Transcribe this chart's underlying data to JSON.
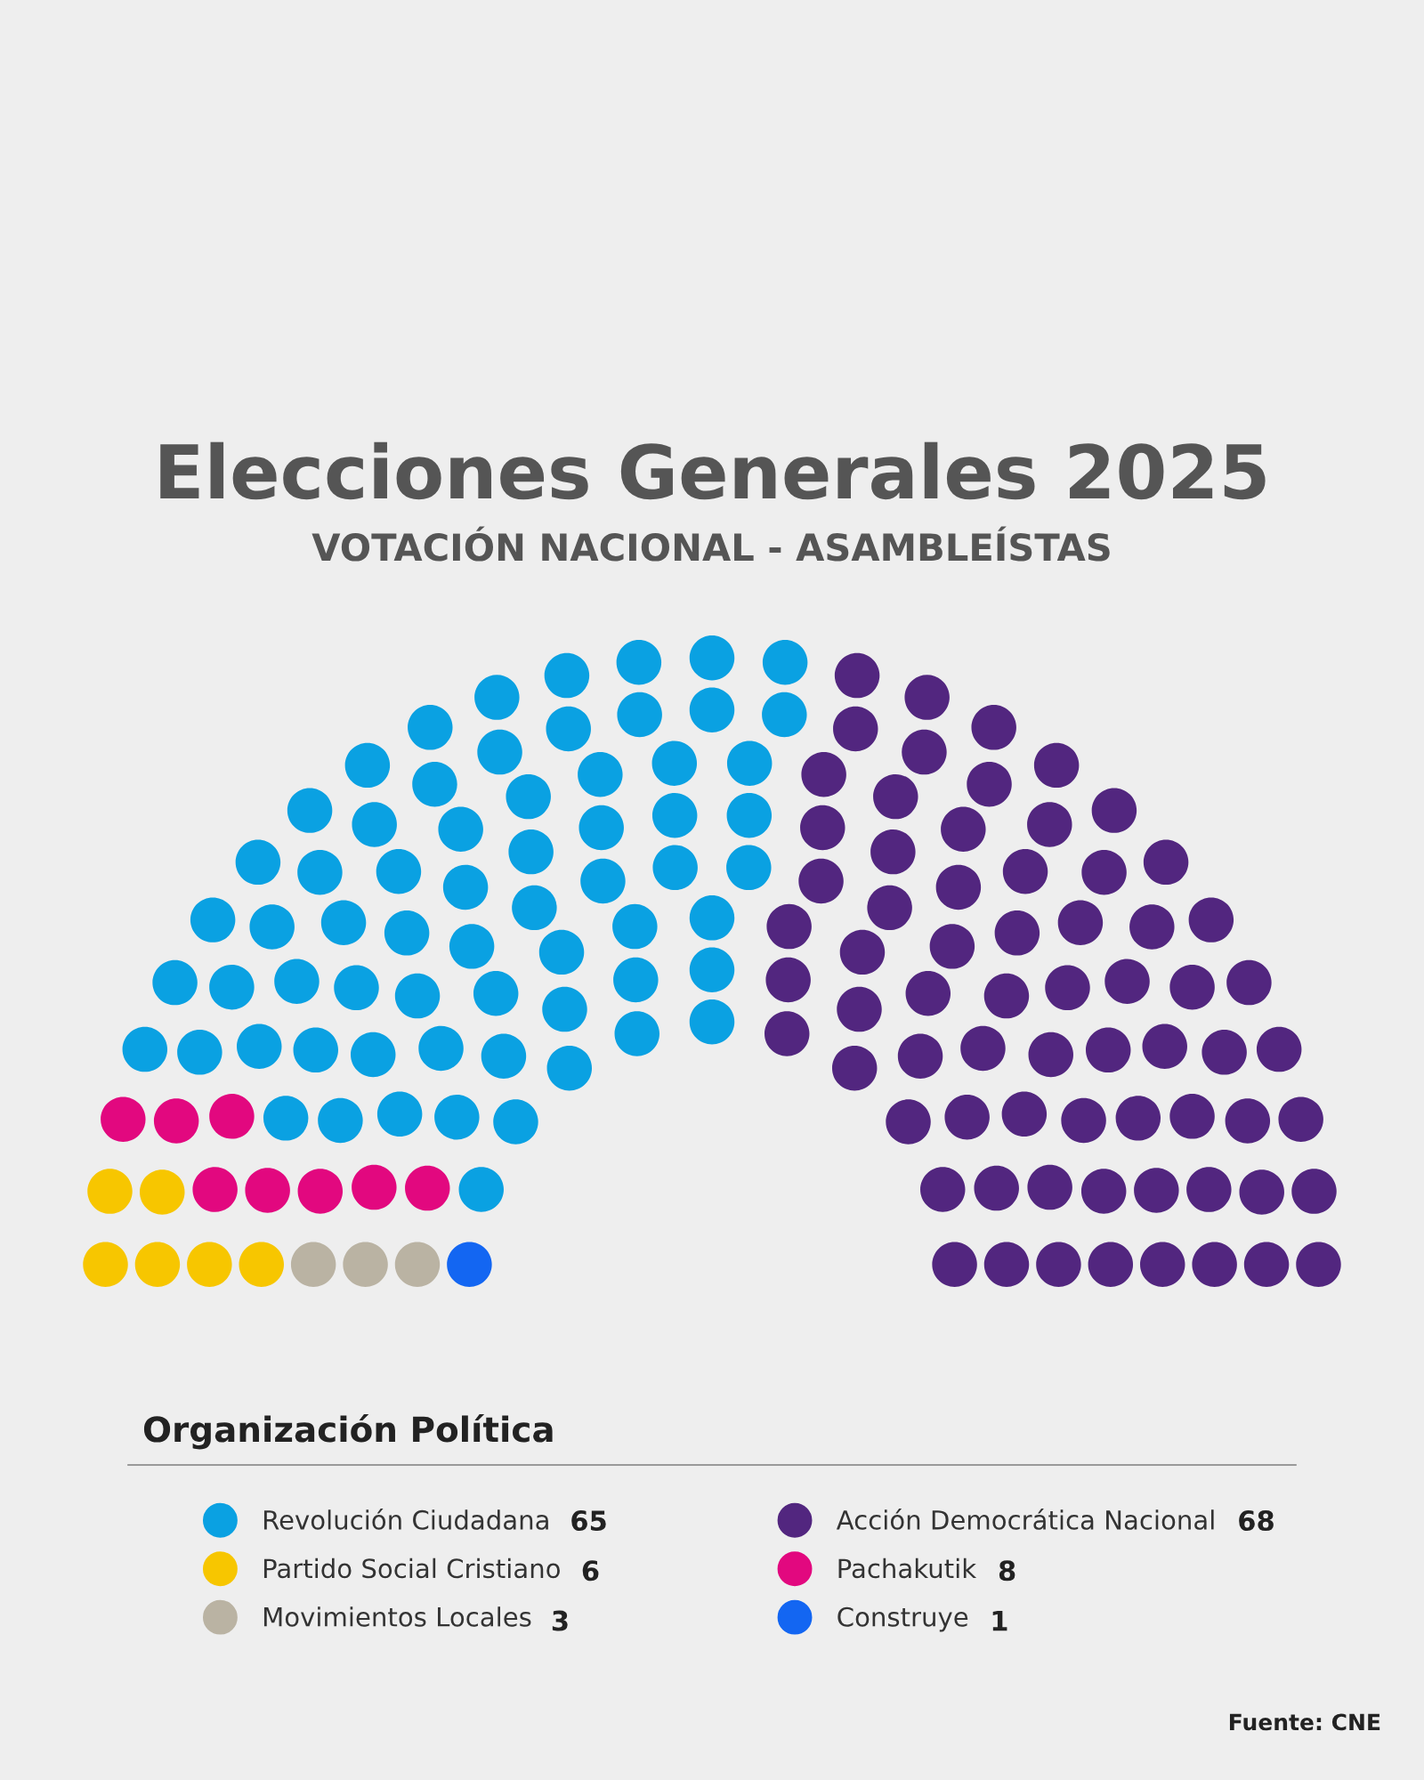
{
  "chart_data": {
    "type": "other",
    "title": "Elecciones Generales 2025",
    "subtitle": "VOTACIÓN NACIONAL - ASAMBLEÍSTAS",
    "legend_title": "Organización Política",
    "categories": [
      "Construye",
      "Movimientos Locales",
      "Partido Social Cristiano",
      "Pachakutik",
      "Revolución Ciudadana",
      "Acción Democrática Nacional"
    ],
    "values": [
      1,
      3,
      6,
      8,
      65,
      68
    ],
    "colors": [
      "#1366f2",
      "#bab3a3",
      "#f7c600",
      "#e2087f",
      "#0aa1e2",
      "#52267f"
    ],
    "data_labels": true,
    "annotations": [
      "Fuente: CNE"
    ]
  }
}
